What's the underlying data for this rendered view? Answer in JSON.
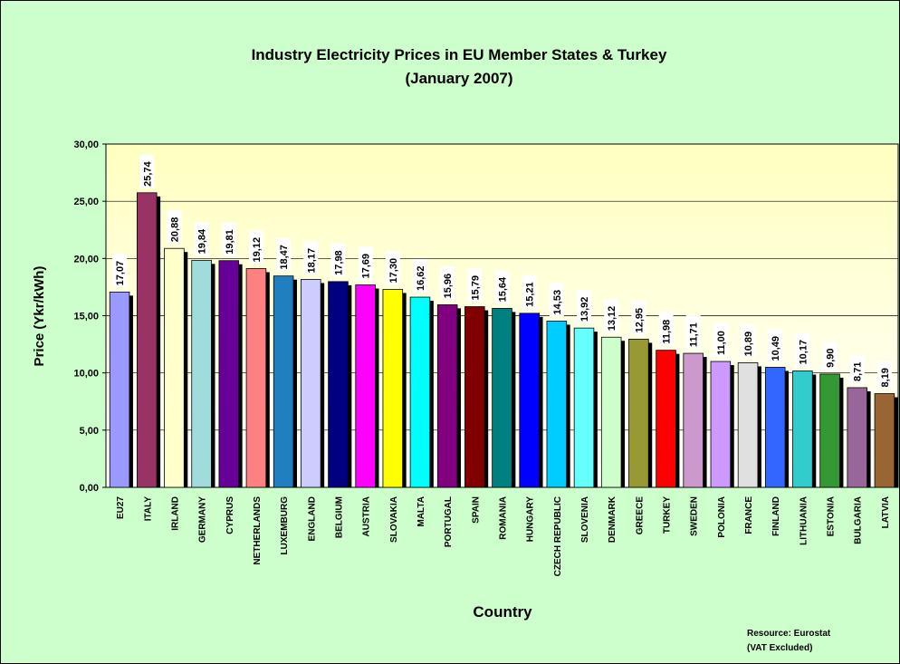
{
  "chart_data": {
    "type": "bar",
    "title": "Industry Electricity Prices in EU Member States & Turkey",
    "subtitle": "(January 2007)",
    "x_label": "Country",
    "y_label": "Price (Ykr/kWh)",
    "annotations": [
      "Resource: Eurostat",
      "(VAT Excluded)"
    ],
    "categories": [
      "EU27",
      "ITALY",
      "IRLAND",
      "GERMANY",
      "CYPRUS",
      "NETHERLANDS",
      "LUXEMBURG",
      "ENGLAND",
      "BELGIUM",
      "AUSTRIA",
      "SLOVAKIA",
      "MALTA",
      "PORTUGAL",
      "SPAIN",
      "ROMANIA",
      "HUNGARY",
      "CZECH REPUBLIC",
      "SLOVENIA",
      "DENMARK",
      "GREECE",
      "TURKEY",
      "SWEDEN",
      "POLONIA",
      "FRANCE",
      "FINLAND",
      "LITHUANIA",
      "ESTONIA",
      "BULGARIA",
      "LATVIA"
    ],
    "values": [
      17.07,
      25.74,
      20.88,
      19.84,
      19.81,
      19.12,
      18.47,
      18.17,
      17.98,
      17.69,
      17.3,
      16.62,
      15.96,
      15.79,
      15.64,
      15.21,
      14.53,
      13.92,
      13.12,
      12.95,
      11.98,
      11.71,
      11.0,
      10.89,
      10.49,
      10.17,
      9.9,
      8.71,
      8.19
    ],
    "value_labels": [
      "17,07",
      "25,74",
      "20,88",
      "19,84",
      "19,81",
      "19,12",
      "18,47",
      "18,17",
      "17,98",
      "17,69",
      "17,30",
      "16,62",
      "15,96",
      "15,79",
      "15,64",
      "15,21",
      "14,53",
      "13,92",
      "13,12",
      "12,95",
      "11,98",
      "11,71",
      "11,00",
      "10,89",
      "10,49",
      "10,17",
      "9,90",
      "8,71",
      "8,19"
    ],
    "colors": [
      "#9999ff",
      "#993366",
      "#ffffcc",
      "#a0dcdc",
      "#660099",
      "#ff8080",
      "#1f7fc0",
      "#ccccff",
      "#000080",
      "#ff00ff",
      "#ffff00",
      "#00ffff",
      "#800080",
      "#800000",
      "#008080",
      "#0000ff",
      "#00ccff",
      "#66ffff",
      "#ccffcc",
      "#999933",
      "#ff0000",
      "#cc99cc",
      "#cc99ff",
      "#e0e0e0",
      "#3366ff",
      "#33cccc",
      "#339933",
      "#996699",
      "#996633"
    ],
    "ylim": [
      0,
      30
    ],
    "yticks": [
      {
        "value": 0,
        "label": "0,00"
      },
      {
        "value": 5,
        "label": "5,00"
      },
      {
        "value": 10,
        "label": "10,00"
      },
      {
        "value": 15,
        "label": "15,00"
      },
      {
        "value": 20,
        "label": "20,00"
      },
      {
        "value": 25,
        "label": "25,00"
      },
      {
        "value": 30,
        "label": "30,00"
      }
    ],
    "grid": true
  }
}
